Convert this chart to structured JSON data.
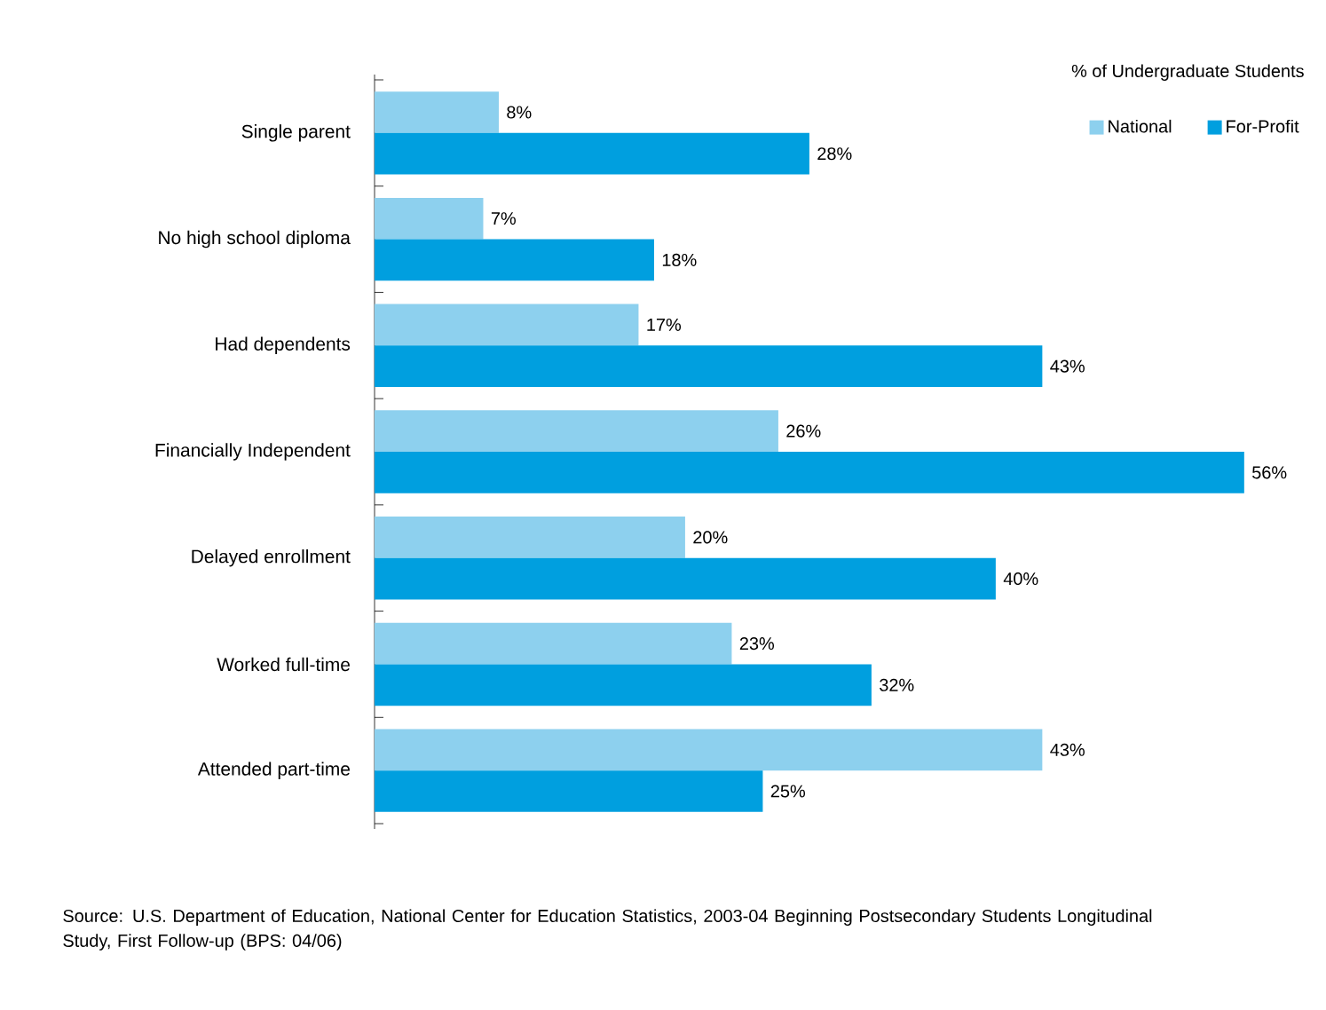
{
  "chart_data": {
    "type": "bar",
    "orientation": "horizontal",
    "legend": "top right",
    "legend_title": "% of Undergraduate Students",
    "categories": [
      "Single parent",
      "No high school diploma",
      "Had dependents",
      "Financially Independent",
      "Delayed enrollment",
      "Worked full-time",
      "Attended part-time"
    ],
    "series": [
      {
        "name": "National",
        "color": "#8dd0ee",
        "values": [
          8,
          7,
          17,
          26,
          20,
          23,
          43
        ],
        "value_labels": [
          "8%",
          "7%",
          "17%",
          "26%",
          "20%",
          "23%",
          "43%"
        ]
      },
      {
        "name": "For-Profit",
        "color": "#009fdf",
        "values": [
          28,
          18,
          43,
          56,
          40,
          32,
          25
        ],
        "value_labels": [
          "28%",
          "18%",
          "43%",
          "56%",
          "40%",
          "32%",
          "25%"
        ]
      }
    ],
    "annotations": [
      "Source: U.S. Department of Education, National Center for Education Statistics, 2003-04 Beginning Postsecondary Students Longitudinal Study, First Follow-up (BPS: 04/06)"
    ]
  }
}
